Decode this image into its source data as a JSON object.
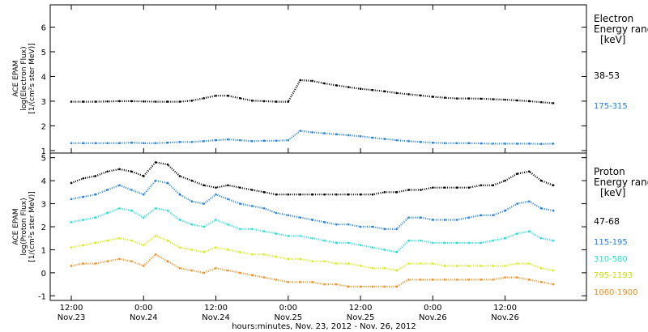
{
  "chart_data": [
    {
      "type": "scatter",
      "panel": "electron",
      "ylabel_lines": [
        "ACE EPAM",
        "log(Electron Flux)",
        "[1/(cm²s ster MeV)]"
      ],
      "ylim": [
        0.9,
        6.9
      ],
      "yticks": [
        1,
        2,
        3,
        4,
        5,
        6
      ],
      "legend_title": [
        "Electron",
        "Energy ranges",
        "[keV]"
      ],
      "series": [
        {
          "name": "38-53",
          "color": "#000000",
          "x": [
            0.0,
            2.0,
            4.0,
            6.0,
            8.0,
            10.0,
            12.0,
            14.0,
            16.0,
            18.0,
            20.0,
            22.0,
            24.0,
            26.0,
            28.0,
            30.0,
            32.0,
            34.0,
            36.0,
            38.0,
            40.0,
            42.0,
            44.0,
            46.0,
            48.0,
            50.0,
            52.0,
            54.0,
            56.0,
            58.0,
            60.0,
            62.0,
            64.0,
            66.0,
            68.0,
            70.0,
            72.0,
            74.0,
            76.0,
            78.0,
            80.0
          ],
          "y": [
            2.98,
            2.98,
            2.98,
            2.99,
            3.0,
            3.0,
            2.99,
            2.98,
            2.98,
            2.98,
            3.02,
            3.12,
            3.22,
            3.22,
            3.12,
            3.02,
            3.0,
            2.98,
            2.98,
            3.85,
            3.82,
            3.72,
            3.64,
            3.57,
            3.5,
            3.45,
            3.4,
            3.33,
            3.28,
            3.23,
            3.18,
            3.14,
            3.11,
            3.11,
            3.1,
            3.08,
            3.06,
            3.03,
            3.0,
            2.96,
            2.92
          ]
        },
        {
          "name": "175-315",
          "color": "#1e7fe6",
          "x": [
            0.0,
            2.0,
            4.0,
            6.0,
            8.0,
            10.0,
            12.0,
            14.0,
            16.0,
            18.0,
            20.0,
            22.0,
            24.0,
            26.0,
            28.0,
            30.0,
            32.0,
            34.0,
            36.0,
            38.0,
            40.0,
            42.0,
            44.0,
            46.0,
            48.0,
            50.0,
            52.0,
            54.0,
            56.0,
            58.0,
            60.0,
            62.0,
            64.0,
            66.0,
            68.0,
            70.0,
            72.0,
            74.0,
            76.0,
            78.0,
            80.0
          ],
          "y": [
            1.3,
            1.3,
            1.3,
            1.3,
            1.3,
            1.32,
            1.3,
            1.3,
            1.32,
            1.35,
            1.35,
            1.38,
            1.42,
            1.45,
            1.42,
            1.38,
            1.4,
            1.4,
            1.42,
            1.8,
            1.74,
            1.7,
            1.66,
            1.62,
            1.58,
            1.52,
            1.47,
            1.42,
            1.38,
            1.35,
            1.32,
            1.3,
            1.3,
            1.3,
            1.29,
            1.28,
            1.28,
            1.28,
            1.28,
            1.27,
            1.28
          ]
        }
      ]
    },
    {
      "type": "scatter",
      "panel": "proton",
      "ylabel_lines": [
        "ACE EPAM",
        "log(Proton Flux)",
        "[1/(cm²s ster MeV)]"
      ],
      "ylim": [
        -1.2,
        5.2
      ],
      "yticks": [
        -1,
        0,
        1,
        2,
        3,
        4,
        5
      ],
      "legend_title": [
        "Proton",
        "Energy ranges",
        "[keV]"
      ],
      "series": [
        {
          "name": "47-68",
          "color": "#000000",
          "x": [
            0.0,
            2.0,
            4.0,
            6.0,
            8.0,
            10.0,
            12.0,
            14.0,
            16.0,
            18.0,
            20.0,
            22.0,
            24.0,
            26.0,
            28.0,
            30.0,
            32.0,
            34.0,
            36.0,
            38.0,
            40.0,
            42.0,
            44.0,
            46.0,
            48.0,
            50.0,
            52.0,
            54.0,
            56.0,
            58.0,
            60.0,
            62.0,
            64.0,
            66.0,
            68.0,
            70.0,
            72.0,
            74.0,
            76.0,
            78.0,
            80.0
          ],
          "y": [
            3.9,
            4.1,
            4.2,
            4.4,
            4.5,
            4.4,
            4.2,
            4.8,
            4.7,
            4.2,
            4.0,
            3.8,
            3.7,
            3.8,
            3.7,
            3.6,
            3.5,
            3.4,
            3.4,
            3.4,
            3.4,
            3.4,
            3.4,
            3.4,
            3.4,
            3.4,
            3.5,
            3.5,
            3.6,
            3.6,
            3.7,
            3.7,
            3.7,
            3.7,
            3.8,
            3.8,
            4.0,
            4.3,
            4.4,
            4.0,
            3.8
          ]
        },
        {
          "name": "115-195",
          "color": "#1e7fe6",
          "x": [
            0.0,
            2.0,
            4.0,
            6.0,
            8.0,
            10.0,
            12.0,
            14.0,
            16.0,
            18.0,
            20.0,
            22.0,
            24.0,
            26.0,
            28.0,
            30.0,
            32.0,
            34.0,
            36.0,
            38.0,
            40.0,
            42.0,
            44.0,
            46.0,
            48.0,
            50.0,
            52.0,
            54.0,
            56.0,
            58.0,
            60.0,
            62.0,
            64.0,
            66.0,
            68.0,
            70.0,
            72.0,
            74.0,
            76.0,
            78.0,
            80.0
          ],
          "y": [
            3.2,
            3.3,
            3.4,
            3.6,
            3.8,
            3.6,
            3.4,
            4.0,
            3.9,
            3.4,
            3.1,
            3.0,
            3.4,
            3.2,
            3.0,
            2.9,
            2.8,
            2.6,
            2.5,
            2.4,
            2.3,
            2.2,
            2.1,
            2.1,
            2.0,
            2.0,
            1.9,
            1.9,
            2.4,
            2.4,
            2.3,
            2.3,
            2.3,
            2.4,
            2.5,
            2.5,
            2.7,
            3.0,
            3.1,
            2.8,
            2.7
          ]
        },
        {
          "name": "310-580",
          "color": "#22e0d8",
          "x": [
            0.0,
            2.0,
            4.0,
            6.0,
            8.0,
            10.0,
            12.0,
            14.0,
            16.0,
            18.0,
            20.0,
            22.0,
            24.0,
            26.0,
            28.0,
            30.0,
            32.0,
            34.0,
            36.0,
            38.0,
            40.0,
            42.0,
            44.0,
            46.0,
            48.0,
            50.0,
            52.0,
            54.0,
            56.0,
            58.0,
            60.0,
            62.0,
            64.0,
            66.0,
            68.0,
            70.0,
            72.0,
            74.0,
            76.0,
            78.0,
            80.0
          ],
          "y": [
            2.2,
            2.3,
            2.4,
            2.6,
            2.8,
            2.7,
            2.4,
            2.8,
            2.7,
            2.3,
            2.1,
            2.0,
            2.3,
            2.1,
            1.9,
            1.9,
            1.8,
            1.7,
            1.6,
            1.6,
            1.5,
            1.4,
            1.3,
            1.3,
            1.2,
            1.1,
            1.0,
            0.9,
            1.4,
            1.4,
            1.3,
            1.3,
            1.3,
            1.3,
            1.3,
            1.4,
            1.5,
            1.7,
            1.8,
            1.5,
            1.4
          ]
        },
        {
          "name": "795-1193",
          "color": "#d8ee10",
          "x": [
            0.0,
            2.0,
            4.0,
            6.0,
            8.0,
            10.0,
            12.0,
            14.0,
            16.0,
            18.0,
            20.0,
            22.0,
            24.0,
            26.0,
            28.0,
            30.0,
            32.0,
            34.0,
            36.0,
            38.0,
            40.0,
            42.0,
            44.0,
            46.0,
            48.0,
            50.0,
            52.0,
            54.0,
            56.0,
            58.0,
            60.0,
            62.0,
            64.0,
            66.0,
            68.0,
            70.0,
            72.0,
            74.0,
            76.0,
            78.0,
            80.0
          ],
          "y": [
            1.1,
            1.2,
            1.3,
            1.4,
            1.5,
            1.4,
            1.2,
            1.6,
            1.4,
            1.1,
            1.0,
            0.9,
            1.1,
            1.0,
            0.9,
            0.8,
            0.8,
            0.7,
            0.6,
            0.6,
            0.5,
            0.5,
            0.4,
            0.4,
            0.3,
            0.2,
            0.2,
            0.1,
            0.4,
            0.4,
            0.4,
            0.3,
            0.3,
            0.3,
            0.3,
            0.3,
            0.3,
            0.4,
            0.4,
            0.2,
            0.1
          ]
        },
        {
          "name": "1060-1900",
          "color": "#f28c1e",
          "x": [
            0.0,
            2.0,
            4.0,
            6.0,
            8.0,
            10.0,
            12.0,
            14.0,
            16.0,
            18.0,
            20.0,
            22.0,
            24.0,
            26.0,
            28.0,
            30.0,
            32.0,
            34.0,
            36.0,
            38.0,
            40.0,
            42.0,
            44.0,
            46.0,
            48.0,
            50.0,
            52.0,
            54.0,
            56.0,
            58.0,
            60.0,
            62.0,
            64.0,
            66.0,
            68.0,
            70.0,
            72.0,
            74.0,
            76.0,
            78.0,
            80.0
          ],
          "y": [
            0.3,
            0.4,
            0.4,
            0.5,
            0.6,
            0.5,
            0.3,
            0.8,
            0.5,
            0.2,
            0.1,
            0.0,
            0.2,
            0.1,
            0.0,
            -0.1,
            -0.2,
            -0.3,
            -0.4,
            -0.4,
            -0.4,
            -0.5,
            -0.5,
            -0.6,
            -0.6,
            -0.6,
            -0.6,
            -0.6,
            -0.3,
            -0.3,
            -0.3,
            -0.3,
            -0.3,
            -0.3,
            -0.3,
            -0.3,
            -0.2,
            -0.2,
            -0.3,
            -0.4,
            -0.5
          ]
        }
      ]
    }
  ],
  "x_axis": {
    "range_hours": [
      -3.5,
      85.5
    ],
    "ticks": [
      {
        "h": 0,
        "time": "12:00",
        "date": "Nov.23"
      },
      {
        "h": 12,
        "time": "0:00",
        "date": "Nov.24"
      },
      {
        "h": 24,
        "time": "12:00",
        "date": "Nov.24"
      },
      {
        "h": 36,
        "time": "0:00",
        "date": "Nov.25"
      },
      {
        "h": 48,
        "time": "12:00",
        "date": "Nov.25"
      },
      {
        "h": 60,
        "time": "0:00",
        "date": "Nov.26"
      },
      {
        "h": 72,
        "time": "12:00",
        "date": "Nov.26"
      }
    ],
    "xlabel": "hours:minutes, Nov. 23, 2012 - Nov. 26, 2012"
  }
}
